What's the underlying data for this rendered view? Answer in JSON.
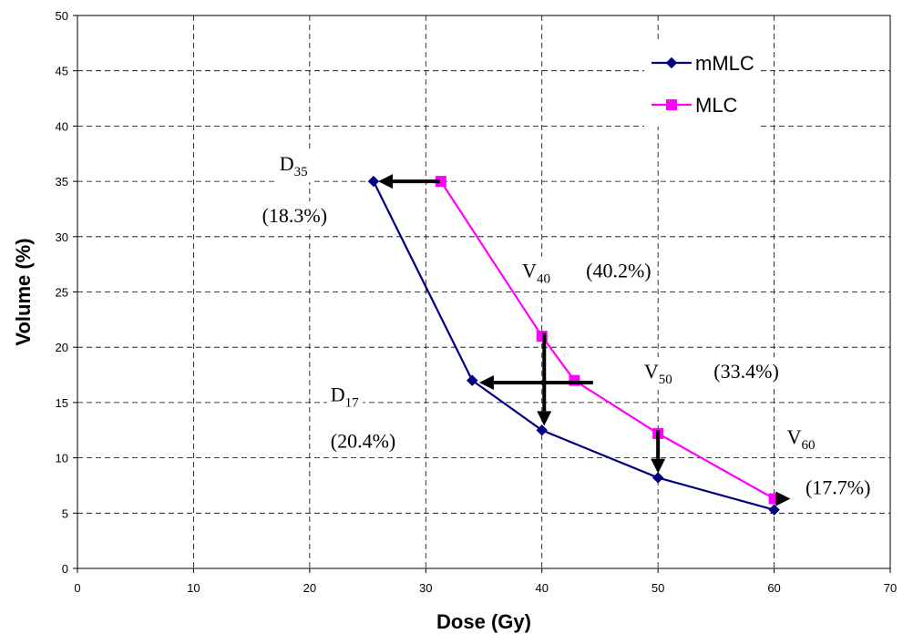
{
  "chart_data": {
    "type": "line",
    "xlabel": "Dose (Gy)",
    "ylabel": "Volume (%)",
    "xlim": [
      0,
      70
    ],
    "ylim": [
      0,
      50
    ],
    "x_ticks": [
      "0",
      "10",
      "20",
      "30",
      "40",
      "50",
      "60",
      "70"
    ],
    "y_ticks": [
      "0",
      "5",
      "10",
      "15",
      "20",
      "25",
      "30",
      "35",
      "40",
      "45",
      "50"
    ],
    "grid": true,
    "legend_position": "top-right",
    "series": [
      {
        "name": "mMLC",
        "color": "#000080",
        "marker": "diamond",
        "x": [
          25.5,
          34,
          40,
          50,
          60
        ],
        "y": [
          35,
          17,
          12.5,
          8.2,
          5.3
        ]
      },
      {
        "name": "MLC",
        "color": "#ff00ff",
        "marker": "square",
        "x": [
          31.3,
          40,
          42.8,
          50,
          60
        ],
        "y": [
          35,
          21,
          17,
          12.2,
          6.3
        ]
      }
    ],
    "annotations": [
      {
        "main": "D",
        "sub": "35",
        "x": 17.4,
        "y": 36.0
      },
      {
        "text": "(18.3%)",
        "x": 15.9,
        "y": 31.3
      },
      {
        "main": "V",
        "sub": "40",
        "x": 38.3,
        "y": 26.3
      },
      {
        "text": "(40.2%)",
        "x": 43.8,
        "y": 26.3
      },
      {
        "main": "D",
        "sub": "17",
        "x": 21.8,
        "y": 15.1
      },
      {
        "text": "(20.4%)",
        "x": 21.8,
        "y": 10.9
      },
      {
        "main": "V",
        "sub": "50",
        "x": 48.8,
        "y": 17.2
      },
      {
        "text": "(33.4%)",
        "x": 54.8,
        "y": 17.2
      },
      {
        "main": "V",
        "sub": "60",
        "x": 61.1,
        "y": 11.3
      },
      {
        "text": "(17.7%)",
        "x": 62.7,
        "y": 6.7
      }
    ],
    "arrows": [
      {
        "x1": 31.2,
        "y1": 35,
        "x2": 25.9,
        "y2": 35
      },
      {
        "x1": 44.4,
        "y1": 16.8,
        "x2": 34.6,
        "y2": 16.8
      },
      {
        "x1": 40.2,
        "y1": 21.3,
        "x2": 40.2,
        "y2": 12.9
      },
      {
        "x1": 50.0,
        "y1": 12.5,
        "x2": 50.0,
        "y2": 8.6
      },
      {
        "x1": 60.2,
        "y1": 6.3,
        "x2": 61.4,
        "y2": 6.3
      }
    ]
  }
}
